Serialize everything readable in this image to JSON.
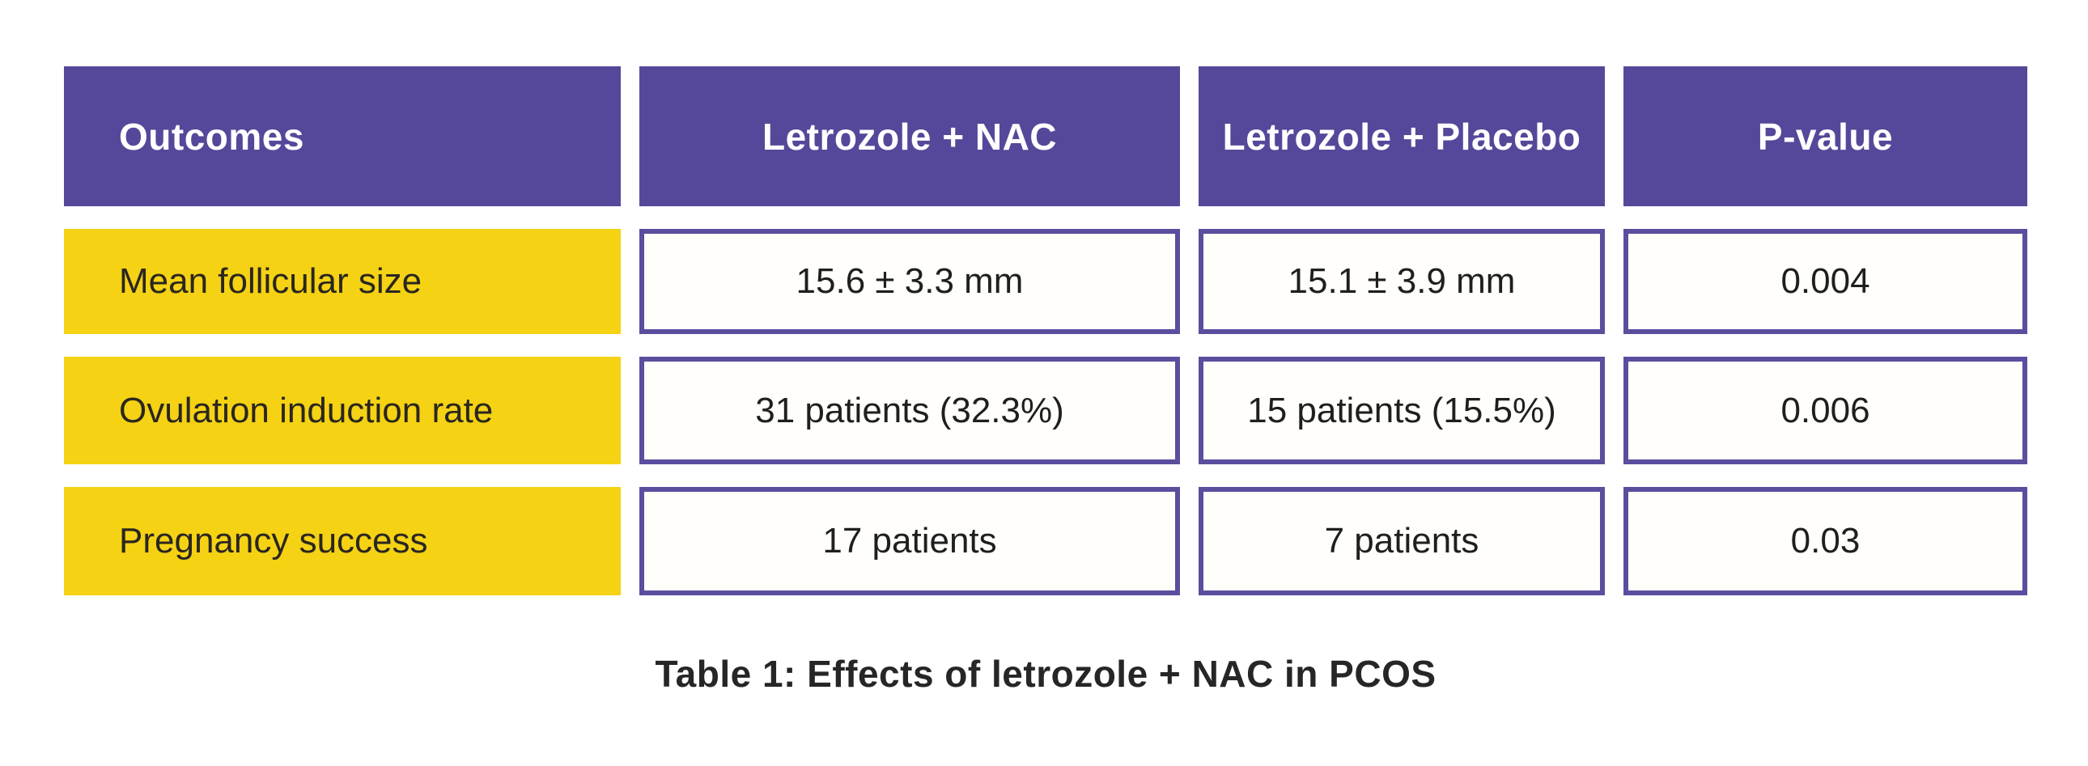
{
  "table": {
    "columns": [
      "Outcomes",
      "Letrozole + NAC",
      "Letrozole + Placebo",
      "P-value"
    ],
    "rows": [
      {
        "label": "Mean follicular size",
        "values": [
          "15.6 ± 3.3 mm",
          "15.1 ± 3.9 mm",
          "0.004"
        ]
      },
      {
        "label": "Ovulation induction rate",
        "values": [
          "31 patients (32.3%)",
          "15 patients (15.5%)",
          "0.006"
        ]
      },
      {
        "label": "Pregnancy success",
        "values": [
          "17 patients",
          "7 patients",
          "0.03"
        ]
      }
    ]
  },
  "caption": "Table 1: Effects of letrozole + NAC in PCOS",
  "colors": {
    "header_bg": "#55489a",
    "header_text": "#ffffff",
    "row_label_bg": "#f5d213",
    "row_label_text": "#2a2620",
    "cell_border": "#5a4e9e",
    "cell_bg": "#fffefb",
    "body_text": "#1f1f1f",
    "caption_text": "#262626",
    "page_bg": "#ffffff"
  },
  "chart_data": {
    "type": "table",
    "title": "Table 1: Effects of letrozole + NAC in PCOS",
    "columns": [
      "Outcomes",
      "Letrozole + NAC",
      "Letrozole + Placebo",
      "P-value"
    ],
    "rows": [
      [
        "Mean follicular size",
        "15.6 ± 3.3 mm",
        "15.1 ± 3.9 mm",
        "0.004"
      ],
      [
        "Ovulation induction rate",
        "31 patients (32.3%)",
        "15 patients (15.5%)",
        "0.006"
      ],
      [
        "Pregnancy success",
        "17 patients",
        "7 patients",
        "0.03"
      ]
    ],
    "numeric_summary": {
      "mean_follicular_size_mm": {
        "letrozole_nac": {
          "mean": 15.6,
          "sd": 3.3
        },
        "letrozole_placebo": {
          "mean": 15.1,
          "sd": 3.9
        },
        "p_value": 0.004
      },
      "ovulation_induction": {
        "letrozole_nac": {
          "patients": 31,
          "percent": 32.3
        },
        "letrozole_placebo": {
          "patients": 15,
          "percent": 15.5
        },
        "p_value": 0.006
      },
      "pregnancy_success": {
        "letrozole_nac": {
          "patients": 17
        },
        "letrozole_placebo": {
          "patients": 7
        },
        "p_value": 0.03
      }
    }
  }
}
